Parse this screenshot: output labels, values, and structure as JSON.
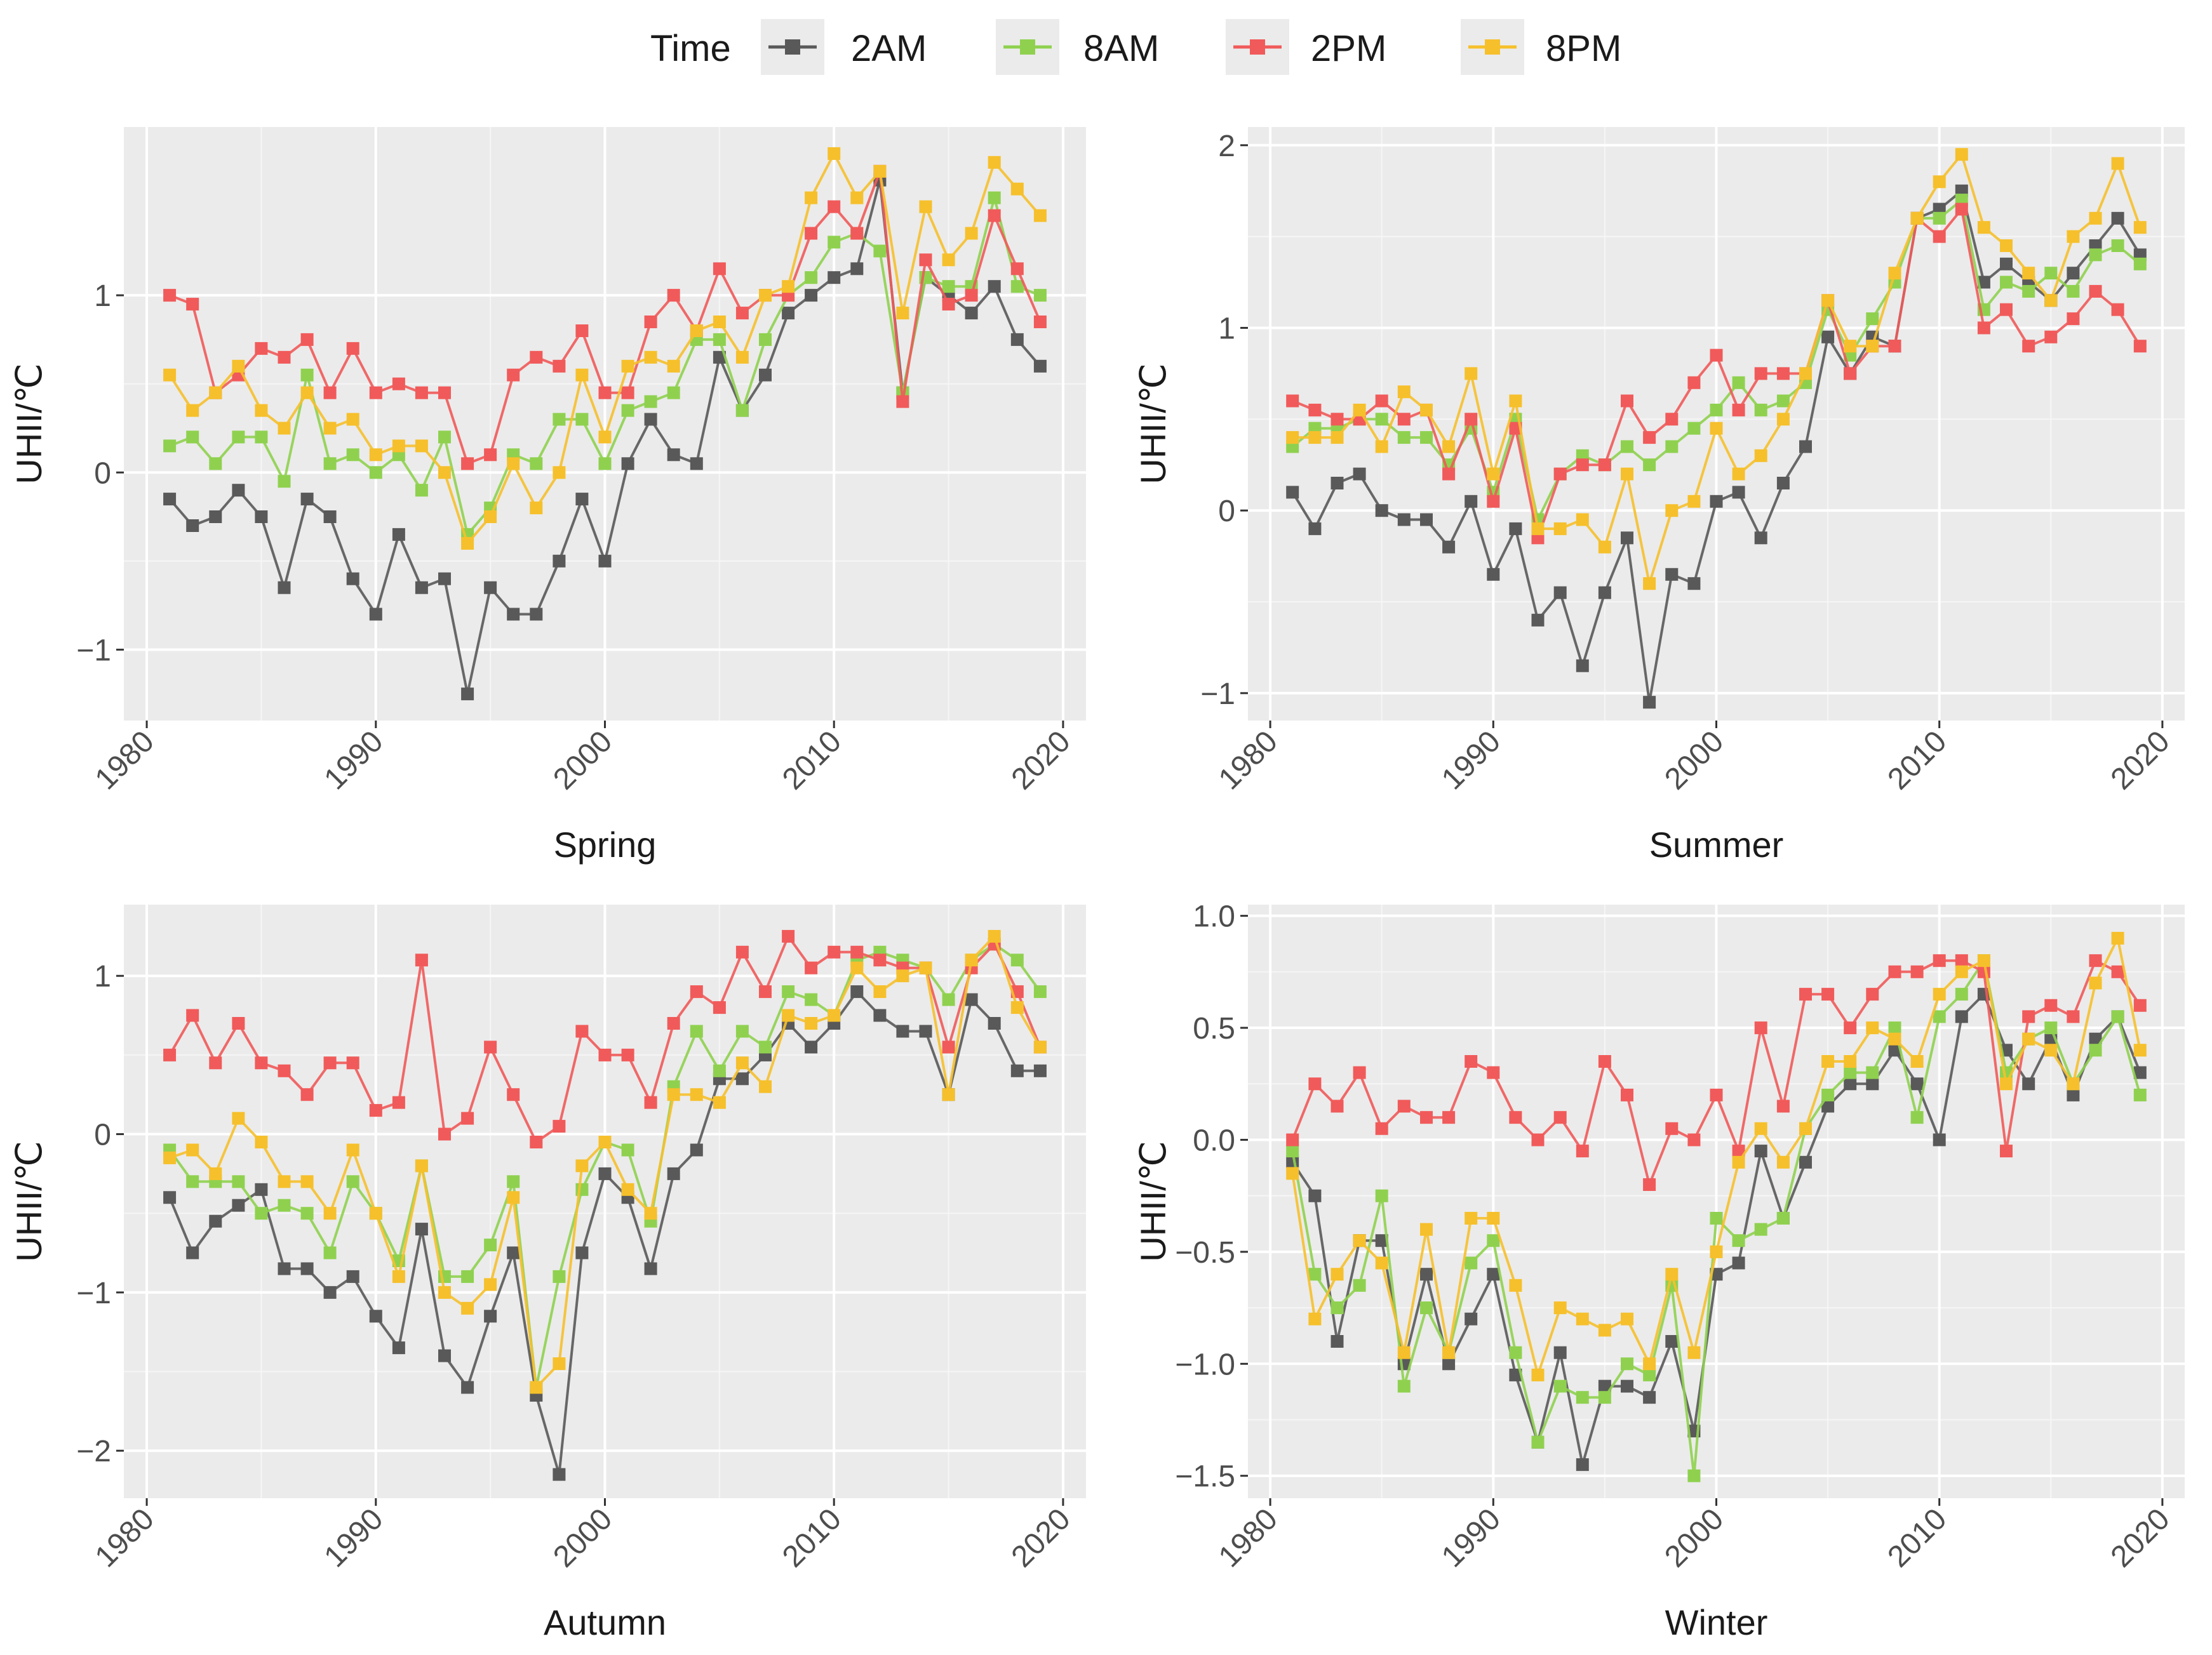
{
  "legend": {
    "title": "Time",
    "items": [
      {
        "label": "2AM",
        "color": "#595959"
      },
      {
        "label": "8AM",
        "color": "#8fd14f"
      },
      {
        "label": "2PM",
        "color": "#f15a5a"
      },
      {
        "label": "8PM",
        "color": "#f6c02c"
      }
    ]
  },
  "chart_data": [
    {
      "type": "line",
      "title": "Spring",
      "xlabel": "Spring",
      "ylabel": "UHII/℃",
      "xlim": [
        1979,
        2021
      ],
      "ylim": [
        -1.4,
        1.95
      ],
      "xticks": [
        1980,
        1990,
        2000,
        2010,
        2020
      ],
      "yticks": [
        -1,
        0,
        1
      ],
      "ytick_labels": [
        "−1",
        "0",
        "1"
      ],
      "x_start": 1981,
      "series": [
        {
          "name": "2AM",
          "values": [
            -0.15,
            -0.3,
            -0.25,
            -0.1,
            -0.25,
            -0.65,
            -0.15,
            -0.25,
            -0.6,
            -0.8,
            -0.35,
            -0.65,
            -0.6,
            -1.25,
            -0.65,
            -0.8,
            -0.8,
            -0.5,
            -0.15,
            -0.5,
            0.05,
            0.3,
            0.1,
            0.05,
            0.65,
            0.35,
            0.55,
            0.9,
            1.0,
            1.1,
            1.15,
            1.65,
            0.45,
            1.1,
            1.0,
            0.9,
            1.05,
            0.75,
            0.6
          ]
        },
        {
          "name": "8AM",
          "values": [
            0.15,
            0.2,
            0.05,
            0.2,
            0.2,
            -0.05,
            0.55,
            0.05,
            0.1,
            0.0,
            0.1,
            -0.1,
            0.2,
            -0.35,
            -0.2,
            0.1,
            0.05,
            0.3,
            0.3,
            0.05,
            0.35,
            0.4,
            0.45,
            0.75,
            0.75,
            0.35,
            0.75,
            1.0,
            1.1,
            1.3,
            1.35,
            1.25,
            0.45,
            1.1,
            1.05,
            1.05,
            1.55,
            1.05,
            1.0
          ]
        },
        {
          "name": "2PM",
          "values": [
            1.0,
            0.95,
            0.45,
            0.55,
            0.7,
            0.65,
            0.75,
            0.45,
            0.7,
            0.45,
            0.5,
            0.45,
            0.45,
            0.05,
            0.1,
            0.55,
            0.65,
            0.6,
            0.8,
            0.45,
            0.45,
            0.85,
            1.0,
            0.8,
            1.15,
            0.9,
            1.0,
            1.0,
            1.35,
            1.5,
            1.35,
            1.7,
            0.4,
            1.2,
            0.95,
            1.0,
            1.45,
            1.15,
            0.85
          ]
        },
        {
          "name": "8PM",
          "values": [
            0.55,
            0.35,
            0.45,
            0.6,
            0.35,
            0.25,
            0.45,
            0.25,
            0.3,
            0.1,
            0.15,
            0.15,
            0.0,
            -0.4,
            -0.25,
            0.05,
            -0.2,
            0.0,
            0.55,
            0.2,
            0.6,
            0.65,
            0.6,
            0.8,
            0.85,
            0.65,
            1.0,
            1.05,
            1.55,
            1.8,
            1.55,
            1.7,
            0.9,
            1.5,
            1.2,
            1.35,
            1.75,
            1.6,
            1.45
          ]
        }
      ]
    },
    {
      "type": "line",
      "title": "Summer",
      "xlabel": "Summer",
      "ylabel": "UHII/℃",
      "xlim": [
        1979,
        2021
      ],
      "ylim": [
        -1.15,
        2.1
      ],
      "xticks": [
        1980,
        1990,
        2000,
        2010,
        2020
      ],
      "yticks": [
        -1,
        0,
        1,
        2
      ],
      "ytick_labels": [
        "−1",
        "0",
        "1",
        "2"
      ],
      "x_start": 1981,
      "series": [
        {
          "name": "2AM",
          "values": [
            0.1,
            -0.1,
            0.15,
            0.2,
            0.0,
            -0.05,
            -0.05,
            -0.2,
            0.05,
            -0.35,
            -0.1,
            -0.6,
            -0.45,
            -0.85,
            -0.45,
            -0.15,
            -1.05,
            -0.35,
            -0.4,
            0.05,
            0.1,
            -0.15,
            0.15,
            0.35,
            0.95,
            0.75,
            0.95,
            0.9,
            1.6,
            1.65,
            1.75,
            1.25,
            1.35,
            1.25,
            1.15,
            1.3,
            1.45,
            1.6,
            1.4
          ]
        },
        {
          "name": "8AM",
          "values": [
            0.35,
            0.45,
            0.45,
            0.5,
            0.5,
            0.4,
            0.4,
            0.25,
            0.45,
            0.1,
            0.5,
            -0.05,
            0.2,
            0.3,
            0.25,
            0.35,
            0.25,
            0.35,
            0.45,
            0.55,
            0.7,
            0.55,
            0.6,
            0.7,
            1.1,
            0.85,
            1.05,
            1.25,
            1.6,
            1.6,
            1.7,
            1.1,
            1.25,
            1.2,
            1.3,
            1.2,
            1.4,
            1.45,
            1.35
          ]
        },
        {
          "name": "2PM",
          "values": [
            0.6,
            0.55,
            0.5,
            0.5,
            0.6,
            0.5,
            0.55,
            0.2,
            0.5,
            0.05,
            0.45,
            -0.15,
            0.2,
            0.25,
            0.25,
            0.6,
            0.4,
            0.5,
            0.7,
            0.85,
            0.55,
            0.75,
            0.75,
            0.75,
            1.15,
            0.75,
            0.9,
            0.9,
            1.6,
            1.5,
            1.65,
            1.0,
            1.1,
            0.9,
            0.95,
            1.05,
            1.2,
            1.1,
            0.9
          ]
        },
        {
          "name": "8PM",
          "values": [
            0.4,
            0.4,
            0.4,
            0.55,
            0.35,
            0.65,
            0.55,
            0.35,
            0.75,
            0.2,
            0.6,
            -0.1,
            -0.1,
            -0.05,
            -0.2,
            0.2,
            -0.4,
            0.0,
            0.05,
            0.45,
            0.2,
            0.3,
            0.5,
            0.75,
            1.15,
            0.9,
            0.9,
            1.3,
            1.6,
            1.8,
            1.95,
            1.55,
            1.45,
            1.3,
            1.15,
            1.5,
            1.6,
            1.9,
            1.55
          ]
        }
      ]
    },
    {
      "type": "line",
      "title": "Autumn",
      "xlabel": "Autumn",
      "ylabel": "UHII/℃",
      "xlim": [
        1979,
        2021
      ],
      "ylim": [
        -2.3,
        1.45
      ],
      "xticks": [
        1980,
        1990,
        2000,
        2010,
        2020
      ],
      "yticks": [
        -2,
        -1,
        0,
        1
      ],
      "ytick_labels": [
        "−2",
        "−1",
        "0",
        "1"
      ],
      "x_start": 1981,
      "series": [
        {
          "name": "2AM",
          "values": [
            -0.4,
            -0.75,
            -0.55,
            -0.45,
            -0.35,
            -0.85,
            -0.85,
            -1.0,
            -0.9,
            -1.15,
            -1.35,
            -0.6,
            -1.4,
            -1.6,
            -1.15,
            -0.75,
            -1.65,
            -2.15,
            -0.75,
            -0.25,
            -0.4,
            -0.85,
            -0.25,
            -0.1,
            0.35,
            0.35,
            0.5,
            0.7,
            0.55,
            0.7,
            0.9,
            0.75,
            0.65,
            0.65,
            0.25,
            0.85,
            0.7,
            0.4,
            0.4
          ]
        },
        {
          "name": "8AM",
          "values": [
            -0.1,
            -0.3,
            -0.3,
            -0.3,
            -0.5,
            -0.45,
            -0.5,
            -0.75,
            -0.3,
            -0.5,
            -0.8,
            -0.2,
            -0.9,
            -0.9,
            -0.7,
            -0.3,
            -1.6,
            -0.9,
            -0.35,
            -0.05,
            -0.1,
            -0.55,
            0.3,
            0.65,
            0.4,
            0.65,
            0.55,
            0.9,
            0.85,
            0.75,
            1.1,
            1.15,
            1.1,
            1.05,
            0.85,
            1.1,
            1.2,
            1.1,
            0.9
          ]
        },
        {
          "name": "2PM",
          "values": [
            0.5,
            0.75,
            0.45,
            0.7,
            0.45,
            0.4,
            0.25,
            0.45,
            0.45,
            0.15,
            0.2,
            1.1,
            0.0,
            0.1,
            0.55,
            0.25,
            -0.05,
            0.05,
            0.65,
            0.5,
            0.5,
            0.2,
            0.7,
            0.9,
            0.8,
            1.15,
            0.9,
            1.25,
            1.05,
            1.15,
            1.15,
            1.1,
            1.05,
            1.05,
            0.55,
            1.05,
            1.2,
            0.9,
            0.55
          ]
        },
        {
          "name": "8PM",
          "values": [
            -0.15,
            -0.1,
            -0.25,
            0.1,
            -0.05,
            -0.3,
            -0.3,
            -0.5,
            -0.1,
            -0.5,
            -0.9,
            -0.2,
            -1.0,
            -1.1,
            -0.95,
            -0.4,
            -1.6,
            -1.45,
            -0.2,
            -0.05,
            -0.35,
            -0.5,
            0.25,
            0.25,
            0.2,
            0.45,
            0.3,
            0.75,
            0.7,
            0.75,
            1.05,
            0.9,
            1.0,
            1.05,
            0.25,
            1.1,
            1.25,
            0.8,
            0.55
          ]
        }
      ]
    },
    {
      "type": "line",
      "title": "Winter",
      "xlabel": "Winter",
      "ylabel": "UHII/℃",
      "xlim": [
        1979,
        2021
      ],
      "ylim": [
        -1.6,
        1.05
      ],
      "xticks": [
        1980,
        1990,
        2000,
        2010,
        2020
      ],
      "yticks": [
        -1.5,
        -1.0,
        -0.5,
        0.0,
        0.5,
        1.0
      ],
      "ytick_labels": [
        "−1.5",
        "−1.0",
        "−0.5",
        "0.0",
        "0.5",
        "1.0"
      ],
      "x_start": 1981,
      "series": [
        {
          "name": "2AM",
          "values": [
            -0.1,
            -0.25,
            -0.9,
            -0.45,
            -0.45,
            -1.0,
            -0.6,
            -1.0,
            -0.8,
            -0.6,
            -1.05,
            -1.35,
            -0.95,
            -1.45,
            -1.1,
            -1.1,
            -1.15,
            -0.9,
            -1.3,
            -0.6,
            -0.55,
            -0.05,
            -0.35,
            -0.1,
            0.15,
            0.25,
            0.25,
            0.4,
            0.25,
            0.0,
            0.55,
            0.65,
            0.4,
            0.25,
            0.45,
            0.2,
            0.45,
            0.55,
            0.3
          ]
        },
        {
          "name": "8AM",
          "values": [
            -0.05,
            -0.6,
            -0.75,
            -0.65,
            -0.25,
            -1.1,
            -0.75,
            -0.95,
            -0.55,
            -0.45,
            -0.95,
            -1.35,
            -1.1,
            -1.15,
            -1.15,
            -1.0,
            -1.05,
            -0.65,
            -1.5,
            -0.35,
            -0.45,
            -0.4,
            -0.35,
            0.05,
            0.2,
            0.3,
            0.3,
            0.5,
            0.1,
            0.55,
            0.65,
            0.8,
            0.3,
            0.45,
            0.5,
            0.25,
            0.4,
            0.55,
            0.2
          ]
        },
        {
          "name": "2PM",
          "values": [
            0.0,
            0.25,
            0.15,
            0.3,
            0.05,
            0.15,
            0.1,
            0.1,
            0.35,
            0.3,
            0.1,
            0.0,
            0.1,
            -0.05,
            0.35,
            0.2,
            -0.2,
            0.05,
            0.0,
            0.2,
            -0.05,
            0.5,
            0.15,
            0.65,
            0.65,
            0.5,
            0.65,
            0.75,
            0.75,
            0.8,
            0.8,
            0.75,
            -0.05,
            0.55,
            0.6,
            0.55,
            0.8,
            0.75,
            0.6
          ]
        },
        {
          "name": "8PM",
          "values": [
            -0.15,
            -0.8,
            -0.6,
            -0.45,
            -0.55,
            -0.95,
            -0.4,
            -0.95,
            -0.35,
            -0.35,
            -0.65,
            -1.05,
            -0.75,
            -0.8,
            -0.85,
            -0.8,
            -1.0,
            -0.6,
            -0.95,
            -0.5,
            -0.1,
            0.05,
            -0.1,
            0.05,
            0.35,
            0.35,
            0.5,
            0.45,
            0.35,
            0.65,
            0.75,
            0.8,
            0.25,
            0.45,
            0.4,
            0.25,
            0.7,
            0.9,
            0.4
          ]
        }
      ]
    }
  ]
}
